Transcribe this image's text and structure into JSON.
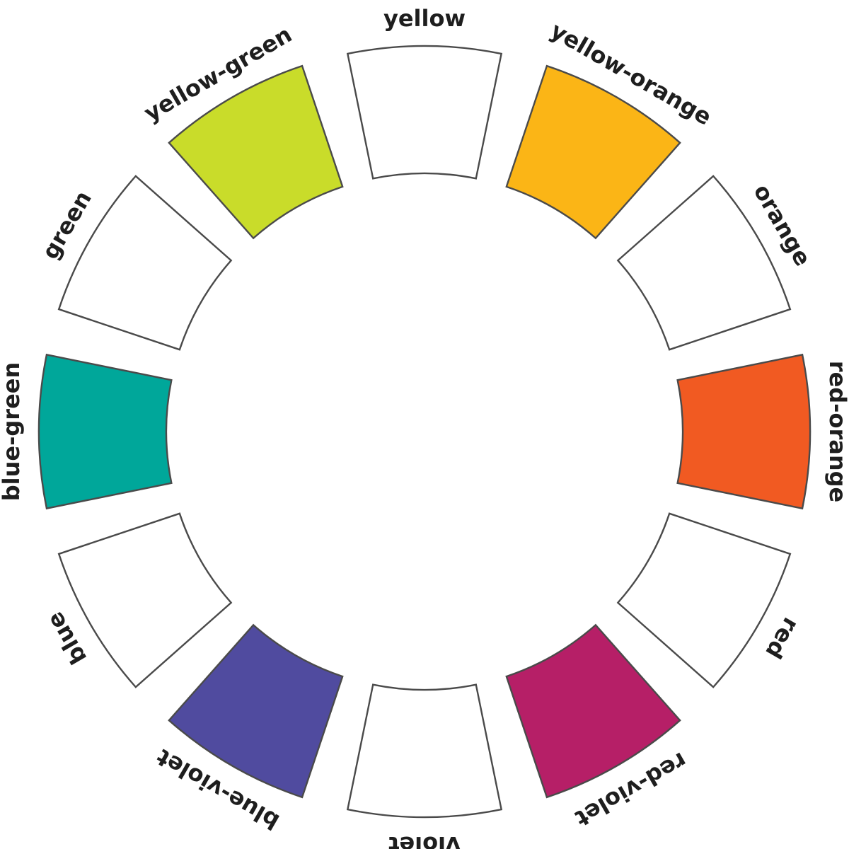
{
  "wheel": {
    "segments": [
      {
        "label": "yellow",
        "fill": "#ffffff"
      },
      {
        "label": "yellow-orange",
        "fill": "#fbb516"
      },
      {
        "label": "orange",
        "fill": "#ffffff"
      },
      {
        "label": "red-orange",
        "fill": "#f15a22"
      },
      {
        "label": "red",
        "fill": "#ffffff"
      },
      {
        "label": "red-violet",
        "fill": "#b61f67"
      },
      {
        "label": "violet",
        "fill": "#ffffff"
      },
      {
        "label": "blue-violet",
        "fill": "#504b9f"
      },
      {
        "label": "blue",
        "fill": "#ffffff"
      },
      {
        "label": "blue-green",
        "fill": "#00a79a"
      },
      {
        "label": "green",
        "fill": "#ffffff"
      },
      {
        "label": "yellow-green",
        "fill": "#c9dc2a"
      }
    ]
  }
}
